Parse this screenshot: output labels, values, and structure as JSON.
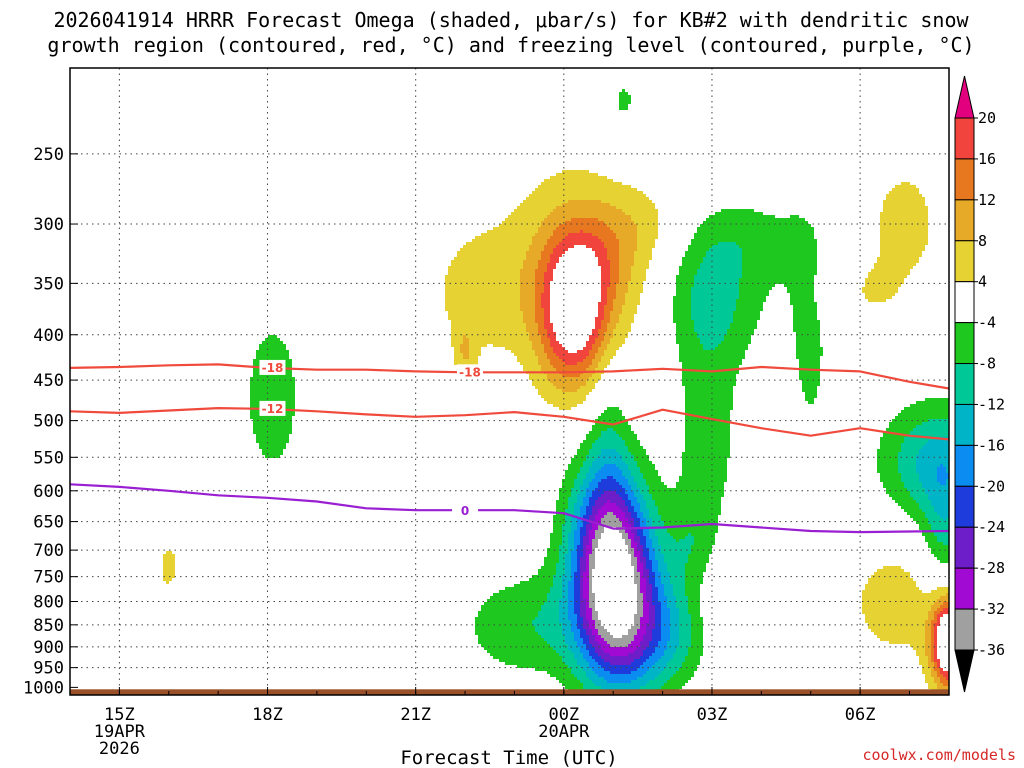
{
  "title_line1": "2026041914 HRRR Forecast Omega (shaded, μbar/s) for KB#2 with dendritic snow",
  "title_line2": "growth region (contoured, red, °C) and freezing level (contoured, purple, °C)",
  "credit": "coolwx.com/models",
  "chart_data": {
    "type": "heatmap",
    "xlabel": "Forecast Time (UTC)",
    "ylabel": "",
    "x_ticks": [
      {
        "label": "15Z",
        "sub": [
          "19APR",
          "2026"
        ],
        "hour": 15
      },
      {
        "label": "18Z",
        "sub": [],
        "hour": 18
      },
      {
        "label": "21Z",
        "sub": [],
        "hour": 21
      },
      {
        "label": "00Z",
        "sub": [
          "20APR"
        ],
        "hour": 24
      },
      {
        "label": "03Z",
        "sub": [],
        "hour": 27
      },
      {
        "label": "06Z",
        "sub": [],
        "hour": 30
      }
    ],
    "xlim": [
      14,
      31.8
    ],
    "y_ticks": [
      250,
      300,
      350,
      400,
      450,
      500,
      550,
      600,
      650,
      700,
      750,
      800,
      850,
      900,
      950,
      1000
    ],
    "ylim": [
      1020,
      200
    ],
    "yscale": "log-pressure",
    "colorbar": {
      "labels": [
        "20",
        "16",
        "12",
        "8",
        "4",
        "-4",
        "-8",
        "-12",
        "-16",
        "-20",
        "-24",
        "-28",
        "-32",
        "-36"
      ],
      "bins": [
        {
          "color": "#e3007e"
        },
        {
          "color": "#f0443c",
          "range": [
            16,
            20
          ]
        },
        {
          "color": "#e87820",
          "range": [
            12,
            16
          ]
        },
        {
          "color": "#e6aa28",
          "range": [
            8,
            12
          ]
        },
        {
          "color": "#e6d232",
          "range": [
            4,
            8
          ]
        },
        {
          "color": "#ffffff",
          "range": [
            -4,
            4
          ]
        },
        {
          "color": "#1ec81e",
          "range": [
            -8,
            -4
          ]
        },
        {
          "color": "#00c896",
          "range": [
            -12,
            -8
          ]
        },
        {
          "color": "#00b4c8",
          "range": [
            -16,
            -12
          ]
        },
        {
          "color": "#0a8cf0",
          "range": [
            -20,
            -16
          ]
        },
        {
          "color": "#1e3cdc",
          "range": [
            -24,
            -20
          ]
        },
        {
          "color": "#6e1ec8",
          "range": [
            -28,
            -24
          ]
        },
        {
          "color": "#a00ad2",
          "range": [
            -32,
            -28
          ]
        },
        {
          "color": "#a0a0a0",
          "range": [
            -36,
            -32
          ]
        },
        {
          "color": "#000000"
        }
      ]
    },
    "contours": [
      {
        "label": "-18",
        "color": "#f04a3c",
        "points": [
          [
            14,
            436
          ],
          [
            15,
            435
          ],
          [
            16,
            433
          ],
          [
            17,
            432
          ],
          [
            18,
            436
          ],
          [
            19,
            438
          ],
          [
            20,
            438
          ],
          [
            21,
            440
          ],
          [
            22,
            441
          ],
          [
            23,
            441
          ],
          [
            24,
            441
          ],
          [
            25,
            440
          ],
          [
            26,
            437
          ],
          [
            27,
            440
          ],
          [
            28,
            435
          ],
          [
            29,
            438
          ],
          [
            30,
            440
          ],
          [
            31,
            452
          ],
          [
            31.8,
            460
          ]
        ]
      },
      {
        "label": "-12",
        "color": "#f04a3c",
        "points": [
          [
            14,
            488
          ],
          [
            15,
            490
          ],
          [
            16,
            487
          ],
          [
            17,
            484
          ],
          [
            18,
            485
          ],
          [
            19,
            488
          ],
          [
            20,
            492
          ],
          [
            21,
            495
          ],
          [
            22,
            493
          ],
          [
            23,
            489
          ],
          [
            24,
            495
          ],
          [
            25,
            505
          ],
          [
            26,
            486
          ],
          [
            27,
            498
          ],
          [
            28,
            510
          ],
          [
            29,
            520
          ],
          [
            30,
            510
          ],
          [
            31,
            520
          ],
          [
            31.8,
            525
          ]
        ]
      },
      {
        "label": "0",
        "color": "#9a1ed2",
        "points": [
          [
            14,
            590
          ],
          [
            15,
            594
          ],
          [
            16,
            600
          ],
          [
            17,
            607
          ],
          [
            18,
            611
          ],
          [
            19,
            617
          ],
          [
            20,
            628
          ],
          [
            21,
            631
          ],
          [
            22,
            631
          ],
          [
            23,
            631
          ],
          [
            24,
            636
          ],
          [
            25,
            662
          ],
          [
            26,
            660
          ],
          [
            27,
            654
          ],
          [
            28,
            660
          ],
          [
            29,
            666
          ],
          [
            30,
            668
          ],
          [
            31.8,
            666
          ]
        ]
      }
    ],
    "contour_labels": [
      {
        "text": "-18",
        "hour": 18.1,
        "p": 436
      },
      {
        "text": "-18",
        "hour": 22.1,
        "p": 441
      },
      {
        "text": "-12",
        "hour": 18.1,
        "p": 485
      },
      {
        "text": "0",
        "hour": 22.0,
        "p": 632
      }
    ],
    "terrain": {
      "color": "#9a5028",
      "top_p": 1005,
      "note": "surface"
    }
  }
}
